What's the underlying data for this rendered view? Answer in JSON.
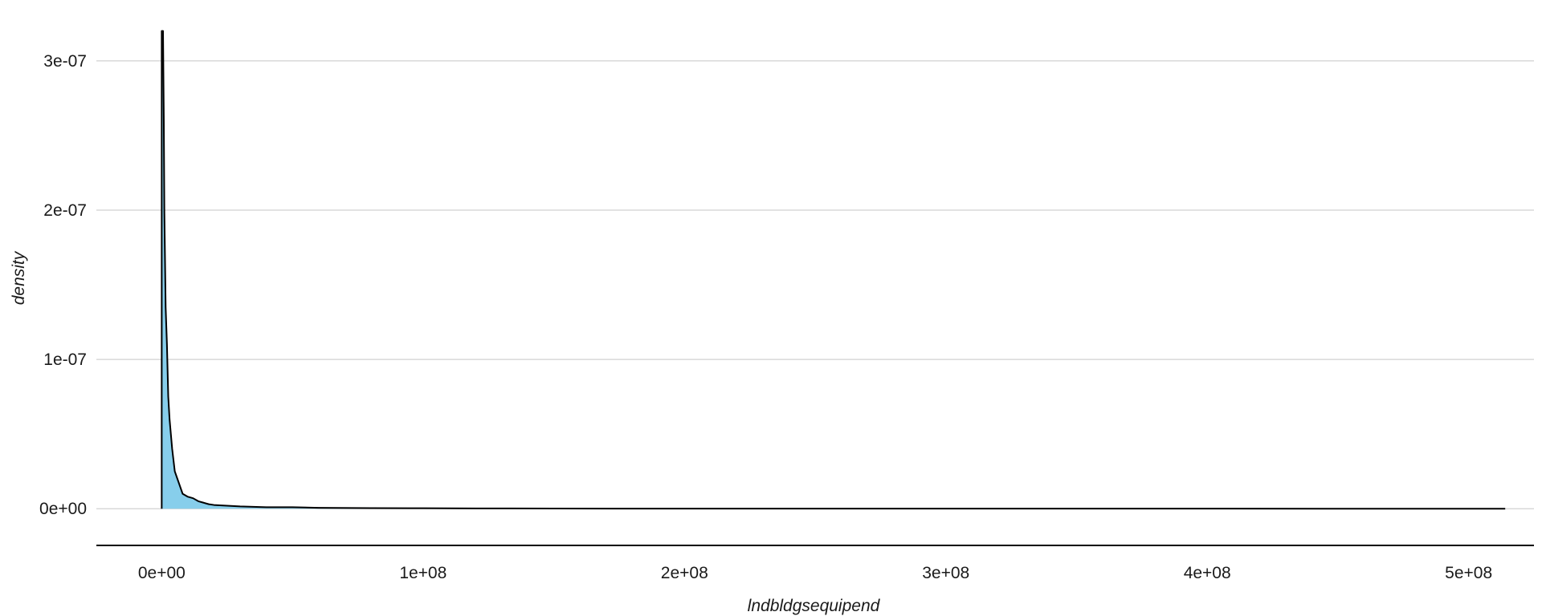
{
  "chart_data": {
    "type": "area",
    "title": "",
    "xlabel": "lndbldgsequipend",
    "ylabel": "density",
    "xlim": [
      -25000000,
      525000000
    ],
    "ylim": [
      -1.6e-08,
      3.3e-07
    ],
    "x_ticks": [
      {
        "value": 0,
        "label": "0e+00"
      },
      {
        "value": 100000000,
        "label": "1e+08"
      },
      {
        "value": 200000000,
        "label": "2e+08"
      },
      {
        "value": 300000000,
        "label": "3e+08"
      },
      {
        "value": 400000000,
        "label": "4e+08"
      },
      {
        "value": 500000000,
        "label": "5e+08"
      }
    ],
    "y_ticks": [
      {
        "value": 0,
        "label": "0e+00"
      },
      {
        "value": 1e-07,
        "label": "1e-07"
      },
      {
        "value": 2e-07,
        "label": "2e-07"
      },
      {
        "value": 3e-07,
        "label": "3e-07"
      }
    ],
    "grid": "horizontal major lines only",
    "legend": "none",
    "fill_color": "#87CEEB",
    "line_color": "#000000",
    "series": [
      {
        "x": [
          0,
          200000,
          500000,
          800000,
          1000000,
          1500000,
          2000000,
          2500000,
          3000000,
          3500000,
          4000000,
          5000000,
          6000000,
          7000000,
          8000000,
          10000000,
          12000000,
          14000000,
          16000000,
          18000000,
          20000000,
          25000000,
          30000000,
          40000000,
          50000000,
          60000000,
          80000000,
          100000000,
          120000000,
          150000000,
          200000000,
          300000000,
          400000000,
          514000000
        ],
        "y": [
          3.2e-07,
          3.2e-07,
          3.2e-07,
          2.6e-07,
          2e-07,
          1.35e-07,
          1.1e-07,
          7.5e-08,
          6e-08,
          5e-08,
          4e-08,
          2.5e-08,
          2e-08,
          1.5e-08,
          1e-08,
          8e-09,
          7e-09,
          5e-09,
          4e-09,
          3e-09,
          2.5e-09,
          2e-09,
          1.5e-09,
          1e-09,
          1e-09,
          6e-10,
          4e-10,
          3e-10,
          2e-10,
          1e-10,
          5e-11,
          3e-11,
          2e-11,
          0
        ]
      }
    ]
  }
}
